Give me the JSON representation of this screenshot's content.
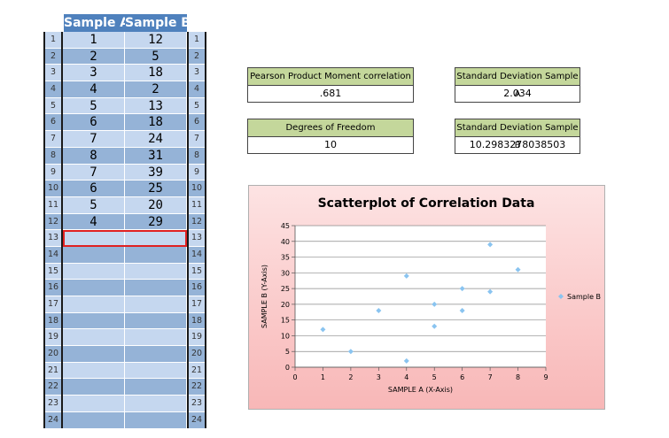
{
  "sheet": {
    "header_a": "Sample A",
    "header_b": "Sample B",
    "row_numbers": [
      "1",
      "2",
      "3",
      "4",
      "5",
      "6",
      "7",
      "8",
      "9",
      "10",
      "11",
      "12",
      "13",
      "14",
      "15",
      "16",
      "17",
      "18",
      "19",
      "20",
      "21",
      "22",
      "23",
      "24"
    ],
    "rows": [
      {
        "a": "1",
        "b": "12"
      },
      {
        "a": "2",
        "b": "5"
      },
      {
        "a": "3",
        "b": "18"
      },
      {
        "a": "4",
        "b": "2"
      },
      {
        "a": "5",
        "b": "13"
      },
      {
        "a": "6",
        "b": "18"
      },
      {
        "a": "7",
        "b": "24"
      },
      {
        "a": "8",
        "b": "31"
      },
      {
        "a": "7",
        "b": "39"
      },
      {
        "a": "6",
        "b": "25"
      },
      {
        "a": "5",
        "b": "20"
      },
      {
        "a": "4",
        "b": "29"
      }
    ]
  },
  "stats": {
    "pearson_label": "Pearson Product Moment correlation",
    "pearson_value": ".681",
    "sd_a_label": "Standard Deviation Sample A",
    "sd_a_value": "2.034",
    "df_label": "Degrees of Freedom",
    "df_value": "10",
    "sd_b_label": "Standard Deviation Sample B",
    "sd_b_value": "10.2983278038503"
  },
  "colors": {
    "header_blue": "#4f81bd",
    "row_dark": "#95b3d7",
    "row_light": "#c5d7ef",
    "stat_green": "#c4d79b",
    "marker": "#8ac4f0",
    "selection": "#e02020"
  },
  "chart_data": {
    "type": "scatter",
    "title": "Scatterplot of Correlation Data",
    "xlabel": "SAMPLE A (X-Axis)",
    "ylabel": "SAMPLE B (Y-Axis)",
    "xlim": [
      0,
      9
    ],
    "ylim": [
      0,
      45
    ],
    "xticks": [
      "0",
      "1",
      "2",
      "3",
      "4",
      "5",
      "6",
      "7",
      "8",
      "9"
    ],
    "yticks": [
      "0",
      "5",
      "10",
      "15",
      "20",
      "25",
      "30",
      "35",
      "40",
      "45"
    ],
    "grid": true,
    "legend": "right",
    "series": [
      {
        "name": "Sample B",
        "x": [
          1,
          2,
          3,
          4,
          5,
          6,
          7,
          8,
          7,
          6,
          5,
          4
        ],
        "y": [
          12,
          5,
          18,
          2,
          13,
          18,
          24,
          31,
          39,
          25,
          20,
          29
        ]
      }
    ]
  }
}
